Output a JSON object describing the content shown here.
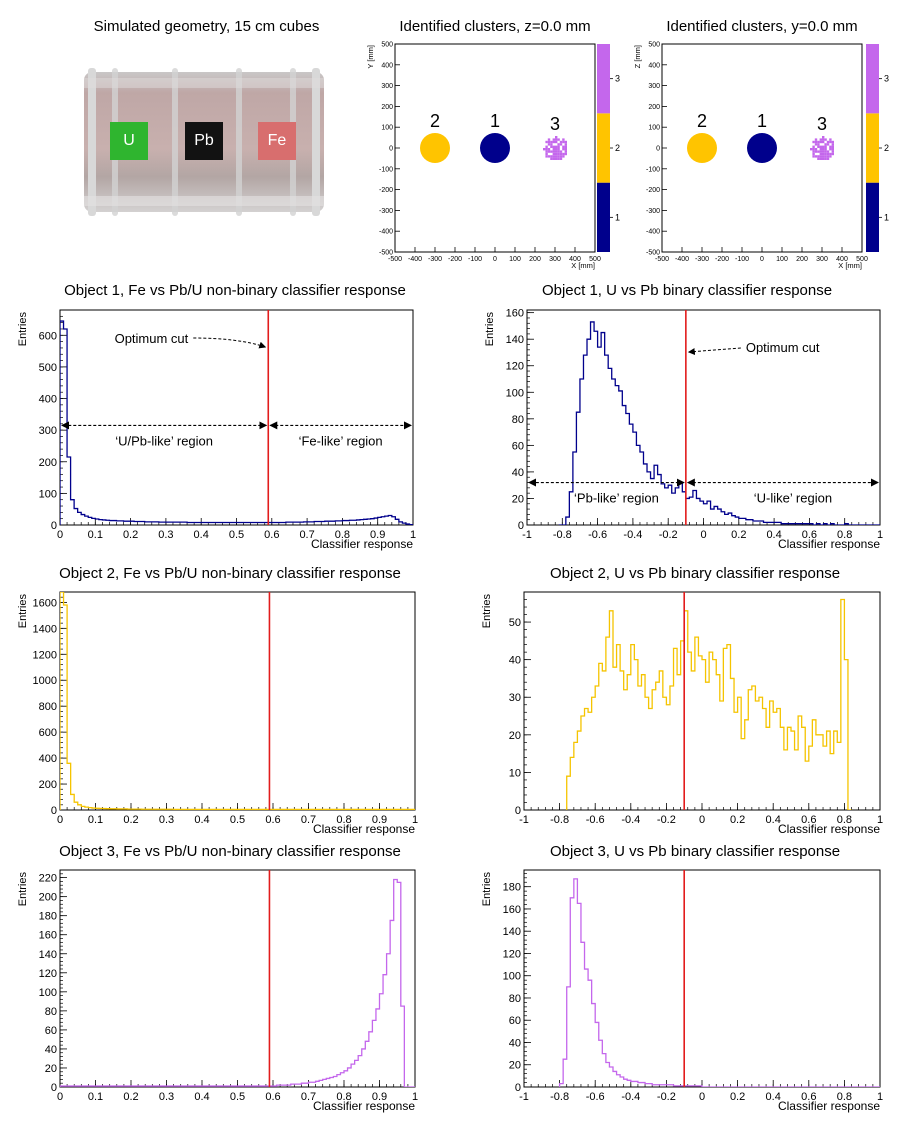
{
  "geometry": {
    "title": "Simulated geometry, 15 cm cubes",
    "cubes": [
      {
        "label": "U",
        "color": "#2fb52f"
      },
      {
        "label": "Pb",
        "color": "#121212"
      },
      {
        "label": "Fe",
        "color": "#d86e6e"
      }
    ]
  },
  "cluster_maps": [
    {
      "title": "Identified clusters, z=0.0 mm",
      "xlabel": "X [mm]",
      "ylabel": "Y [mm]",
      "xlim": [
        -500,
        500
      ],
      "ylim": [
        -500,
        500
      ],
      "xticks": [
        -500,
        -400,
        -300,
        -200,
        -100,
        0,
        100,
        200,
        300,
        400,
        500
      ],
      "yticks": [
        -500,
        -400,
        -300,
        -200,
        -100,
        0,
        100,
        200,
        300,
        400,
        500
      ],
      "clusters": [
        {
          "id": "2",
          "x": -300,
          "y": 0,
          "r": 75,
          "color": "#ffc400",
          "speckled": false
        },
        {
          "id": "1",
          "x": 0,
          "y": 0,
          "r": 75,
          "color": "#00008c",
          "speckled": false
        },
        {
          "id": "3",
          "x": 300,
          "y": 0,
          "r": 60,
          "color": "#c467ec",
          "speckled": true
        }
      ],
      "palette": [
        {
          "label": "1",
          "color": "#00008c"
        },
        {
          "label": "2",
          "color": "#ffc400"
        },
        {
          "label": "3",
          "color": "#c467ec"
        }
      ]
    },
    {
      "title": "Identified clusters, y=0.0 mm",
      "xlabel": "X [mm]",
      "ylabel": "Z [mm]",
      "xlim": [
        -500,
        500
      ],
      "ylim": [
        -500,
        500
      ],
      "xticks": [
        -500,
        -400,
        -300,
        -200,
        -100,
        0,
        100,
        200,
        300,
        400,
        500
      ],
      "yticks": [
        -500,
        -400,
        -300,
        -200,
        -100,
        0,
        100,
        200,
        300,
        400,
        500
      ],
      "clusters": [
        {
          "id": "2",
          "x": -300,
          "y": 0,
          "r": 75,
          "color": "#ffc400",
          "speckled": false
        },
        {
          "id": "1",
          "x": 0,
          "y": 0,
          "r": 75,
          "color": "#00008c",
          "speckled": false
        },
        {
          "id": "3",
          "x": 300,
          "y": 0,
          "r": 60,
          "color": "#c467ec",
          "speckled": true
        }
      ],
      "palette": [
        {
          "label": "1",
          "color": "#00008c"
        },
        {
          "label": "2",
          "color": "#ffc400"
        },
        {
          "label": "3",
          "color": "#c467ec"
        }
      ]
    }
  ],
  "chart_data": [
    {
      "type": "line",
      "title": "Object 1, Fe vs Pb/U non-binary classifier response",
      "xlabel": "Classifier response",
      "ylabel": "Entries",
      "xlim": [
        0,
        1
      ],
      "ylim": [
        0,
        680
      ],
      "xticks": [
        0,
        0.1,
        0.2,
        0.3,
        0.4,
        0.5,
        0.6,
        0.7,
        0.8,
        0.9,
        1
      ],
      "yticks": [
        0,
        100,
        200,
        300,
        400,
        500,
        600
      ],
      "color": "#00008c",
      "cut": 0.59,
      "bin_width": 0.01,
      "x_start": 0,
      "values": [
        645,
        620,
        215,
        80,
        52,
        40,
        33,
        28,
        24,
        21,
        19,
        17,
        16,
        15,
        14,
        14,
        13,
        13,
        12,
        12,
        12,
        11,
        11,
        11,
        10,
        10,
        10,
        10,
        9,
        9,
        9,
        9,
        9,
        9,
        9,
        9,
        8,
        8,
        8,
        8,
        8,
        8,
        8,
        8,
        8,
        8,
        8,
        8,
        8,
        8,
        8,
        8,
        8,
        8,
        8,
        8,
        8,
        8,
        8,
        8,
        8,
        8,
        8,
        8,
        9,
        9,
        9,
        9,
        9,
        10,
        10,
        10,
        11,
        11,
        11,
        12,
        12,
        12,
        13,
        13,
        14,
        14,
        15,
        15,
        16,
        17,
        18,
        19,
        20,
        22,
        24,
        26,
        28,
        30,
        26,
        18,
        10,
        6,
        3,
        1
      ],
      "annotations": {
        "cut_label": "Optimum cut",
        "left_region": "‘U/Pb-like’ region",
        "right_region": "‘Fe-like’ region",
        "arrow_y": 315
      }
    },
    {
      "type": "line",
      "title": "Object 1, U vs Pb binary classifier response",
      "xlabel": "Classifier response",
      "ylabel": "Entries",
      "xlim": [
        -1,
        1
      ],
      "ylim": [
        0,
        162
      ],
      "xticks": [
        -1,
        -0.8,
        -0.6,
        -0.4,
        -0.2,
        0,
        0.2,
        0.4,
        0.6,
        0.8,
        1
      ],
      "yticks": [
        0,
        20,
        40,
        60,
        80,
        100,
        120,
        140,
        160
      ],
      "color": "#00008c",
      "cut": -0.1,
      "bin_width": 0.02,
      "x_start": -0.82,
      "values": [
        0,
        0,
        6,
        25,
        55,
        85,
        110,
        128,
        140,
        153,
        146,
        134,
        145,
        128,
        118,
        110,
        105,
        101,
        90,
        84,
        76,
        70,
        60,
        55,
        46,
        40,
        35,
        45,
        38,
        31,
        28,
        30,
        24,
        28,
        32,
        25,
        20,
        21,
        26,
        20,
        18,
        16,
        18,
        12,
        14,
        12,
        10,
        8,
        9,
        7,
        6,
        5,
        5,
        4,
        4,
        3,
        3,
        3,
        2,
        2,
        2,
        2,
        2,
        1,
        1,
        1,
        1,
        1,
        1,
        1,
        1,
        1,
        0,
        1,
        0,
        1,
        0,
        1,
        0,
        0,
        0,
        1,
        0,
        0,
        0,
        0,
        0,
        0,
        0,
        0,
        0
      ],
      "annotations": {
        "cut_label": "Optimum cut",
        "left_region": "‘Pb-like’ region",
        "right_region": "‘U-like’ region",
        "arrow_y": 32
      }
    },
    {
      "type": "line",
      "title": "Object 2, Fe vs Pb/U non-binary classifier response",
      "xlabel": "Classifier response",
      "ylabel": "Entries",
      "xlim": [
        0,
        1
      ],
      "ylim": [
        0,
        1680
      ],
      "xticks": [
        0,
        0.1,
        0.2,
        0.3,
        0.4,
        0.5,
        0.6,
        0.7,
        0.8,
        0.9,
        1
      ],
      "yticks": [
        0,
        200,
        400,
        600,
        800,
        1000,
        1200,
        1400,
        1600
      ],
      "color": "#f5c400",
      "cut": 0.59,
      "bin_width": 0.01,
      "x_start": 0,
      "values": [
        1680,
        1580,
        360,
        120,
        60,
        40,
        28,
        22,
        18,
        15,
        13,
        12,
        11,
        10,
        9,
        9,
        8,
        8,
        8,
        7,
        7,
        7,
        7,
        6,
        6,
        6,
        6,
        6,
        6,
        6,
        6,
        6,
        5,
        5,
        5,
        5,
        5,
        5,
        5,
        5,
        5,
        5,
        5,
        5,
        5,
        5,
        5,
        5,
        5,
        5,
        5,
        5,
        5,
        5,
        5,
        5,
        5,
        5,
        5,
        5,
        5,
        5,
        5,
        5,
        5,
        5,
        5,
        5,
        5,
        5,
        5,
        5,
        5,
        5,
        5,
        5,
        5,
        5,
        5,
        5,
        5,
        5,
        5,
        5,
        5,
        5,
        5,
        5,
        5,
        5,
        5,
        5,
        5,
        5,
        5,
        5,
        5,
        5,
        5,
        5
      ]
    },
    {
      "type": "line",
      "title": "Object 2, U vs Pb binary classifier response",
      "xlabel": "Classifier response",
      "ylabel": "Entries",
      "xlim": [
        -1,
        1
      ],
      "ylim": [
        0,
        58
      ],
      "xticks": [
        -1,
        -0.8,
        -0.6,
        -0.4,
        -0.2,
        0,
        0.2,
        0.4,
        0.6,
        0.8,
        1
      ],
      "yticks": [
        0,
        10,
        20,
        30,
        40,
        50
      ],
      "color": "#f5c400",
      "cut": -0.1,
      "bin_width": 0.02,
      "x_start": -0.76,
      "values": [
        9,
        14,
        18,
        21,
        25,
        27,
        26,
        30,
        33,
        39,
        37,
        46,
        53,
        38,
        44,
        37,
        32,
        36,
        44,
        40,
        33,
        36,
        30,
        27,
        32,
        34,
        37,
        30,
        28,
        33,
        43,
        36,
        45,
        53,
        42,
        37,
        46,
        41,
        40,
        34,
        42,
        40,
        36,
        29,
        43,
        44,
        35,
        26,
        30,
        19,
        24,
        32,
        33,
        29,
        30,
        27,
        22,
        29,
        26,
        27,
        22,
        16,
        22,
        21,
        16,
        25,
        22,
        13,
        17,
        24,
        20,
        20,
        17,
        21,
        15,
        21,
        18,
        56,
        40,
        0
      ]
    },
    {
      "type": "line",
      "title": "Object 3, Fe vs Pb/U non-binary classifier response",
      "xlabel": "Classifier response",
      "ylabel": "Entries",
      "xlim": [
        0,
        1
      ],
      "ylim": [
        0,
        228
      ],
      "xticks": [
        0,
        0.1,
        0.2,
        0.3,
        0.4,
        0.5,
        0.6,
        0.7,
        0.8,
        0.9,
        1
      ],
      "yticks": [
        0,
        20,
        40,
        60,
        80,
        100,
        120,
        140,
        160,
        180,
        200,
        220
      ],
      "color": "#c467ec",
      "cut": 0.59,
      "bin_width": 0.01,
      "x_start": 0,
      "values": [
        1,
        1,
        1,
        1,
        1,
        1,
        1,
        1,
        1,
        1,
        1,
        1,
        1,
        1,
        1,
        1,
        1,
        1,
        1,
        1,
        1,
        1,
        1,
        1,
        1,
        1,
        1,
        1,
        1,
        1,
        1,
        1,
        1,
        1,
        1,
        1,
        1,
        1,
        1,
        1,
        1,
        1,
        1,
        1,
        1,
        1,
        1,
        1,
        1,
        1,
        1,
        1,
        1,
        1,
        1,
        1,
        1,
        1,
        1,
        1,
        1,
        2,
        2,
        2,
        2,
        3,
        3,
        3,
        4,
        4,
        5,
        5,
        6,
        7,
        8,
        9,
        10,
        11,
        13,
        15,
        17,
        20,
        24,
        28,
        33,
        40,
        48,
        58,
        70,
        82,
        98,
        118,
        140,
        175,
        218,
        215,
        85,
        0,
        0,
        0
      ]
    },
    {
      "type": "line",
      "title": "Object 3, U vs Pb binary classifier response",
      "xlabel": "Classifier response",
      "ylabel": "Entries",
      "xlim": [
        -1,
        1
      ],
      "ylim": [
        0,
        195
      ],
      "xticks": [
        -1,
        -0.8,
        -0.6,
        -0.4,
        -0.2,
        0,
        0.2,
        0.4,
        0.6,
        0.8,
        1
      ],
      "yticks": [
        0,
        20,
        40,
        60,
        80,
        100,
        120,
        140,
        160,
        180
      ],
      "color": "#c467ec",
      "cut": -0.1,
      "bin_width": 0.02,
      "x_start": -0.8,
      "values": [
        3,
        25,
        90,
        170,
        187,
        165,
        130,
        106,
        96,
        75,
        58,
        42,
        30,
        22,
        18,
        14,
        11,
        9,
        7,
        6,
        5,
        5,
        4,
        4,
        3,
        3,
        2,
        2,
        2,
        2,
        2,
        2,
        1,
        1,
        1,
        1,
        1,
        1,
        1,
        1,
        0,
        0,
        0,
        0,
        0,
        0,
        0,
        0,
        0,
        0,
        0,
        0,
        0,
        0,
        0,
        0,
        0,
        0,
        0,
        0,
        0,
        0,
        0,
        0,
        0,
        0,
        0,
        0,
        0,
        0,
        0,
        0,
        0,
        0,
        0,
        0,
        0,
        0,
        0,
        0,
        0,
        0,
        0,
        0,
        0,
        0,
        0,
        0,
        0,
        0,
        0
      ]
    }
  ]
}
